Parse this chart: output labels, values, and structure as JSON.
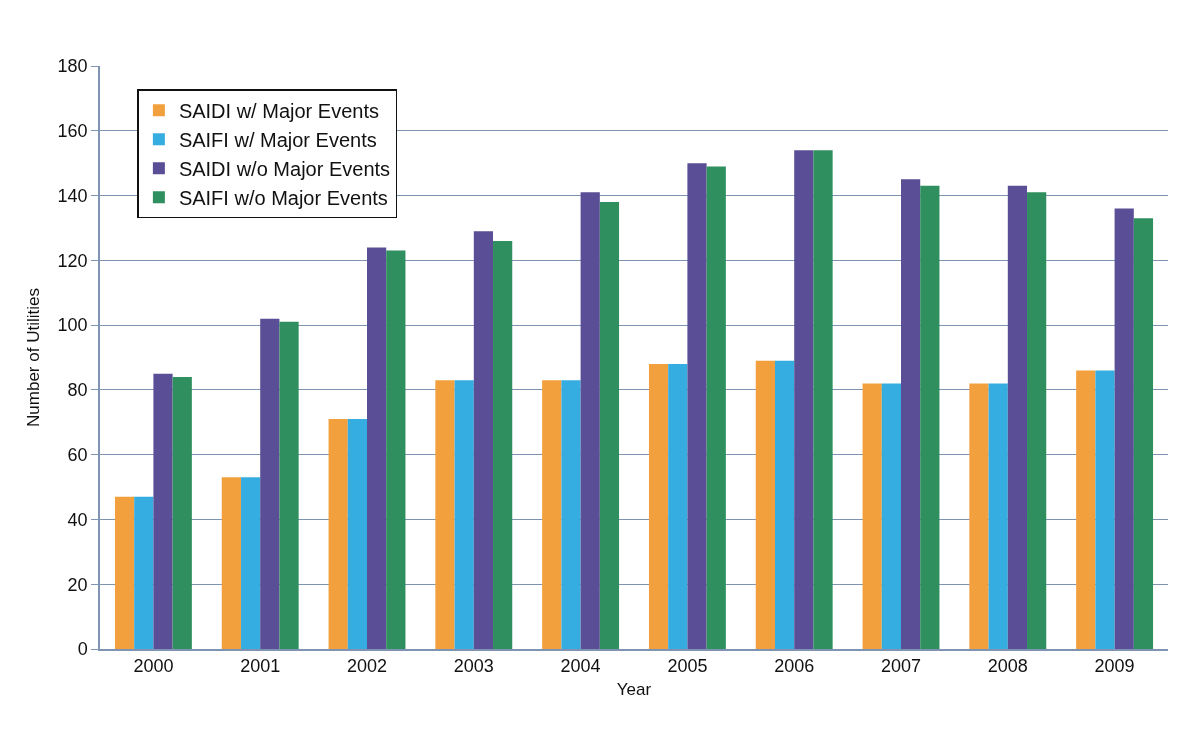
{
  "chart_data": {
    "type": "bar",
    "xlabel": "Year",
    "ylabel": "Number of Utilities",
    "categories": [
      "2000",
      "2001",
      "2002",
      "2003",
      "2004",
      "2005",
      "2006",
      "2007",
      "2008",
      "2009"
    ],
    "series": [
      {
        "name": "SAIDI w/ Major Events",
        "color": "#f2a03d",
        "values": [
          47,
          53,
          71,
          83,
          83,
          88,
          89,
          82,
          82,
          86
        ]
      },
      {
        "name": "SAIFI w/ Major Events",
        "color": "#36ade0",
        "values": [
          47,
          53,
          71,
          83,
          83,
          88,
          89,
          82,
          82,
          86
        ]
      },
      {
        "name": "SAIDI w/o Major Events",
        "color": "#5a4e96",
        "values": [
          85,
          102,
          124,
          129,
          141,
          150,
          154,
          145,
          143,
          136
        ]
      },
      {
        "name": "SAIFI w/o Major Events",
        "color": "#2f8f5e",
        "values": [
          84,
          101,
          123,
          126,
          138,
          149,
          154,
          143,
          141,
          133
        ]
      }
    ],
    "ylim": [
      0,
      180
    ],
    "yticks": [
      0,
      20,
      40,
      60,
      80,
      100,
      120,
      140,
      160,
      180
    ],
    "grid": "y",
    "legend": "top left"
  }
}
